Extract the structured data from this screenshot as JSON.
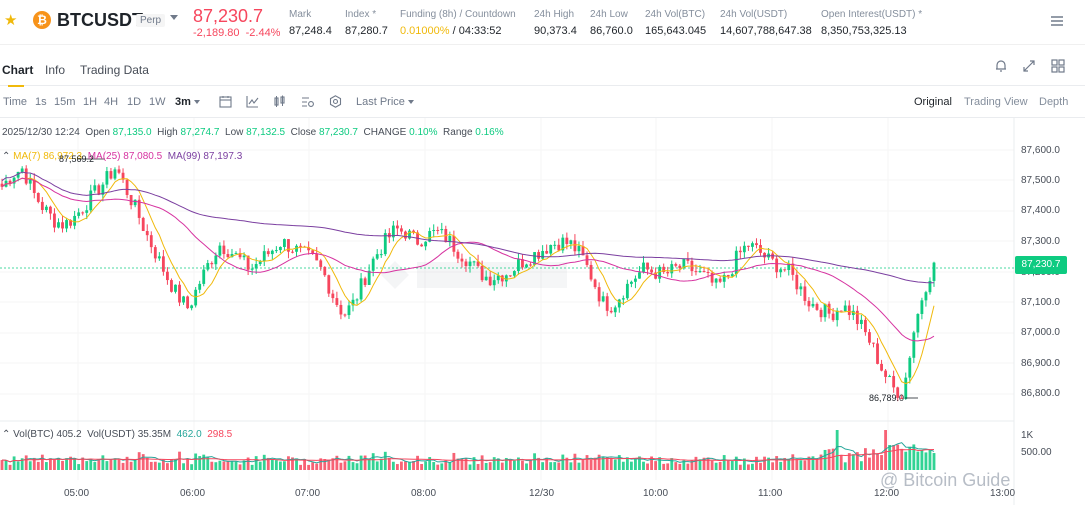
{
  "header": {
    "symbol": "BTCUSDT",
    "contract_type": "Perp",
    "last_price": "87,230.7",
    "change": "-2,189.80",
    "change_pct": "-2.44%",
    "stats": [
      {
        "label": "Mark",
        "value": "87,248.4"
      },
      {
        "label": "Index *",
        "value": "87,280.7"
      },
      {
        "label": "Funding (8h) / Countdown",
        "value_rate": "0.01000%",
        "value_rest": " / 04:33:52"
      },
      {
        "label": "24h High",
        "value": "90,373.4"
      },
      {
        "label": "24h Low",
        "value": "86,760.0"
      },
      {
        "label": "24h Vol(BTC)",
        "value": "165,643.045"
      },
      {
        "label": "24h Vol(USDT)",
        "value": "14,607,788,647.38"
      },
      {
        "label": "Open Interest(USDT) *",
        "value": "8,350,753,325.13"
      }
    ]
  },
  "tabs": [
    "Chart",
    "Info",
    "Trading Data"
  ],
  "toolbar": {
    "timeframes": [
      "Time",
      "1s",
      "15m",
      "1H",
      "4H",
      "1D",
      "1W",
      "3m"
    ],
    "price_type": "Last Price",
    "views": [
      "Original",
      "Trading View",
      "Depth"
    ]
  },
  "legend": {
    "datetime": "2025/12/30 12:24",
    "open_label": "Open",
    "open": "87,135.0",
    "high_label": "High",
    "high": "87,274.7",
    "low_label": "Low",
    "low": "87,132.5",
    "close_label": "Close",
    "close": "87,230.7",
    "change_label": "CHANGE",
    "change": "0.10%",
    "range_label": "Range",
    "range": "0.16%",
    "ma7_label": "MA(7)",
    "ma7": "86,972.3",
    "ma25_label": "MA(25)",
    "ma25": "87,080.5",
    "ma99_label": "MA(99)",
    "ma99": "87,197.3",
    "vol_btc_label": "Vol(BTC)",
    "vol_btc": "405.2",
    "vol_usdt_label": "Vol(USDT)",
    "vol_usdt": "35.35M",
    "vol_ma1": "462.0",
    "vol_ma2": "298.5"
  },
  "annotations": {
    "high_mark": "87,569.2",
    "low_mark": "86,789.0"
  },
  "watermark": "@ Bitcoin Guide",
  "colors": {
    "up": "#0ecb81",
    "down": "#f6465d",
    "accent": "#f0b90b",
    "ma7": "#f0b90b",
    "ma25": "#d633a0",
    "ma99": "#7b3fa0"
  },
  "chart_data": {
    "type": "candlestick",
    "interval": "3m",
    "y_ticks": [
      "87,600.0",
      "87,500.0",
      "87,400.0",
      "87,300.0",
      "87,200.0",
      "87,100.0",
      "87,000.0",
      "86,900.0",
      "86,800.0"
    ],
    "ylim": [
      86740,
      87660
    ],
    "current_price": "87,230.7",
    "x_ticks": [
      "05:00",
      "06:00",
      "07:00",
      "08:00",
      "12/30",
      "10:00",
      "11:00",
      "12:00",
      "13:00"
    ],
    "vol_ticks": [
      "1K",
      "500.00"
    ],
    "close_path": [
      87480,
      87520,
      87540,
      87460,
      87410,
      87370,
      87355,
      87380,
      87420,
      87460,
      87500,
      87545,
      87470,
      87400,
      87320,
      87250,
      87180,
      87120,
      87080,
      87160,
      87230,
      87290,
      87270,
      87240,
      87210,
      87240,
      87270,
      87300,
      87280,
      87260,
      87240,
      87200,
      87120,
      87060,
      87100,
      87180,
      87250,
      87300,
      87340,
      87330,
      87300,
      87320,
      87330,
      87310,
      87270,
      87240,
      87200,
      87180,
      87190,
      87200,
      87230,
      87250,
      87270,
      87290,
      87300,
      87290,
      87250,
      87180,
      87100,
      87090,
      87140,
      87180,
      87210,
      87200,
      87190,
      87210,
      87220,
      87200,
      87180,
      87150,
      87180,
      87250,
      87290,
      87270,
      87240,
      87220,
      87200,
      87150,
      87100,
      87080,
      87060,
      87090,
      87070,
      87020,
      86960,
      86880,
      86820,
      86800,
      87000,
      87140,
      87230
    ]
  }
}
